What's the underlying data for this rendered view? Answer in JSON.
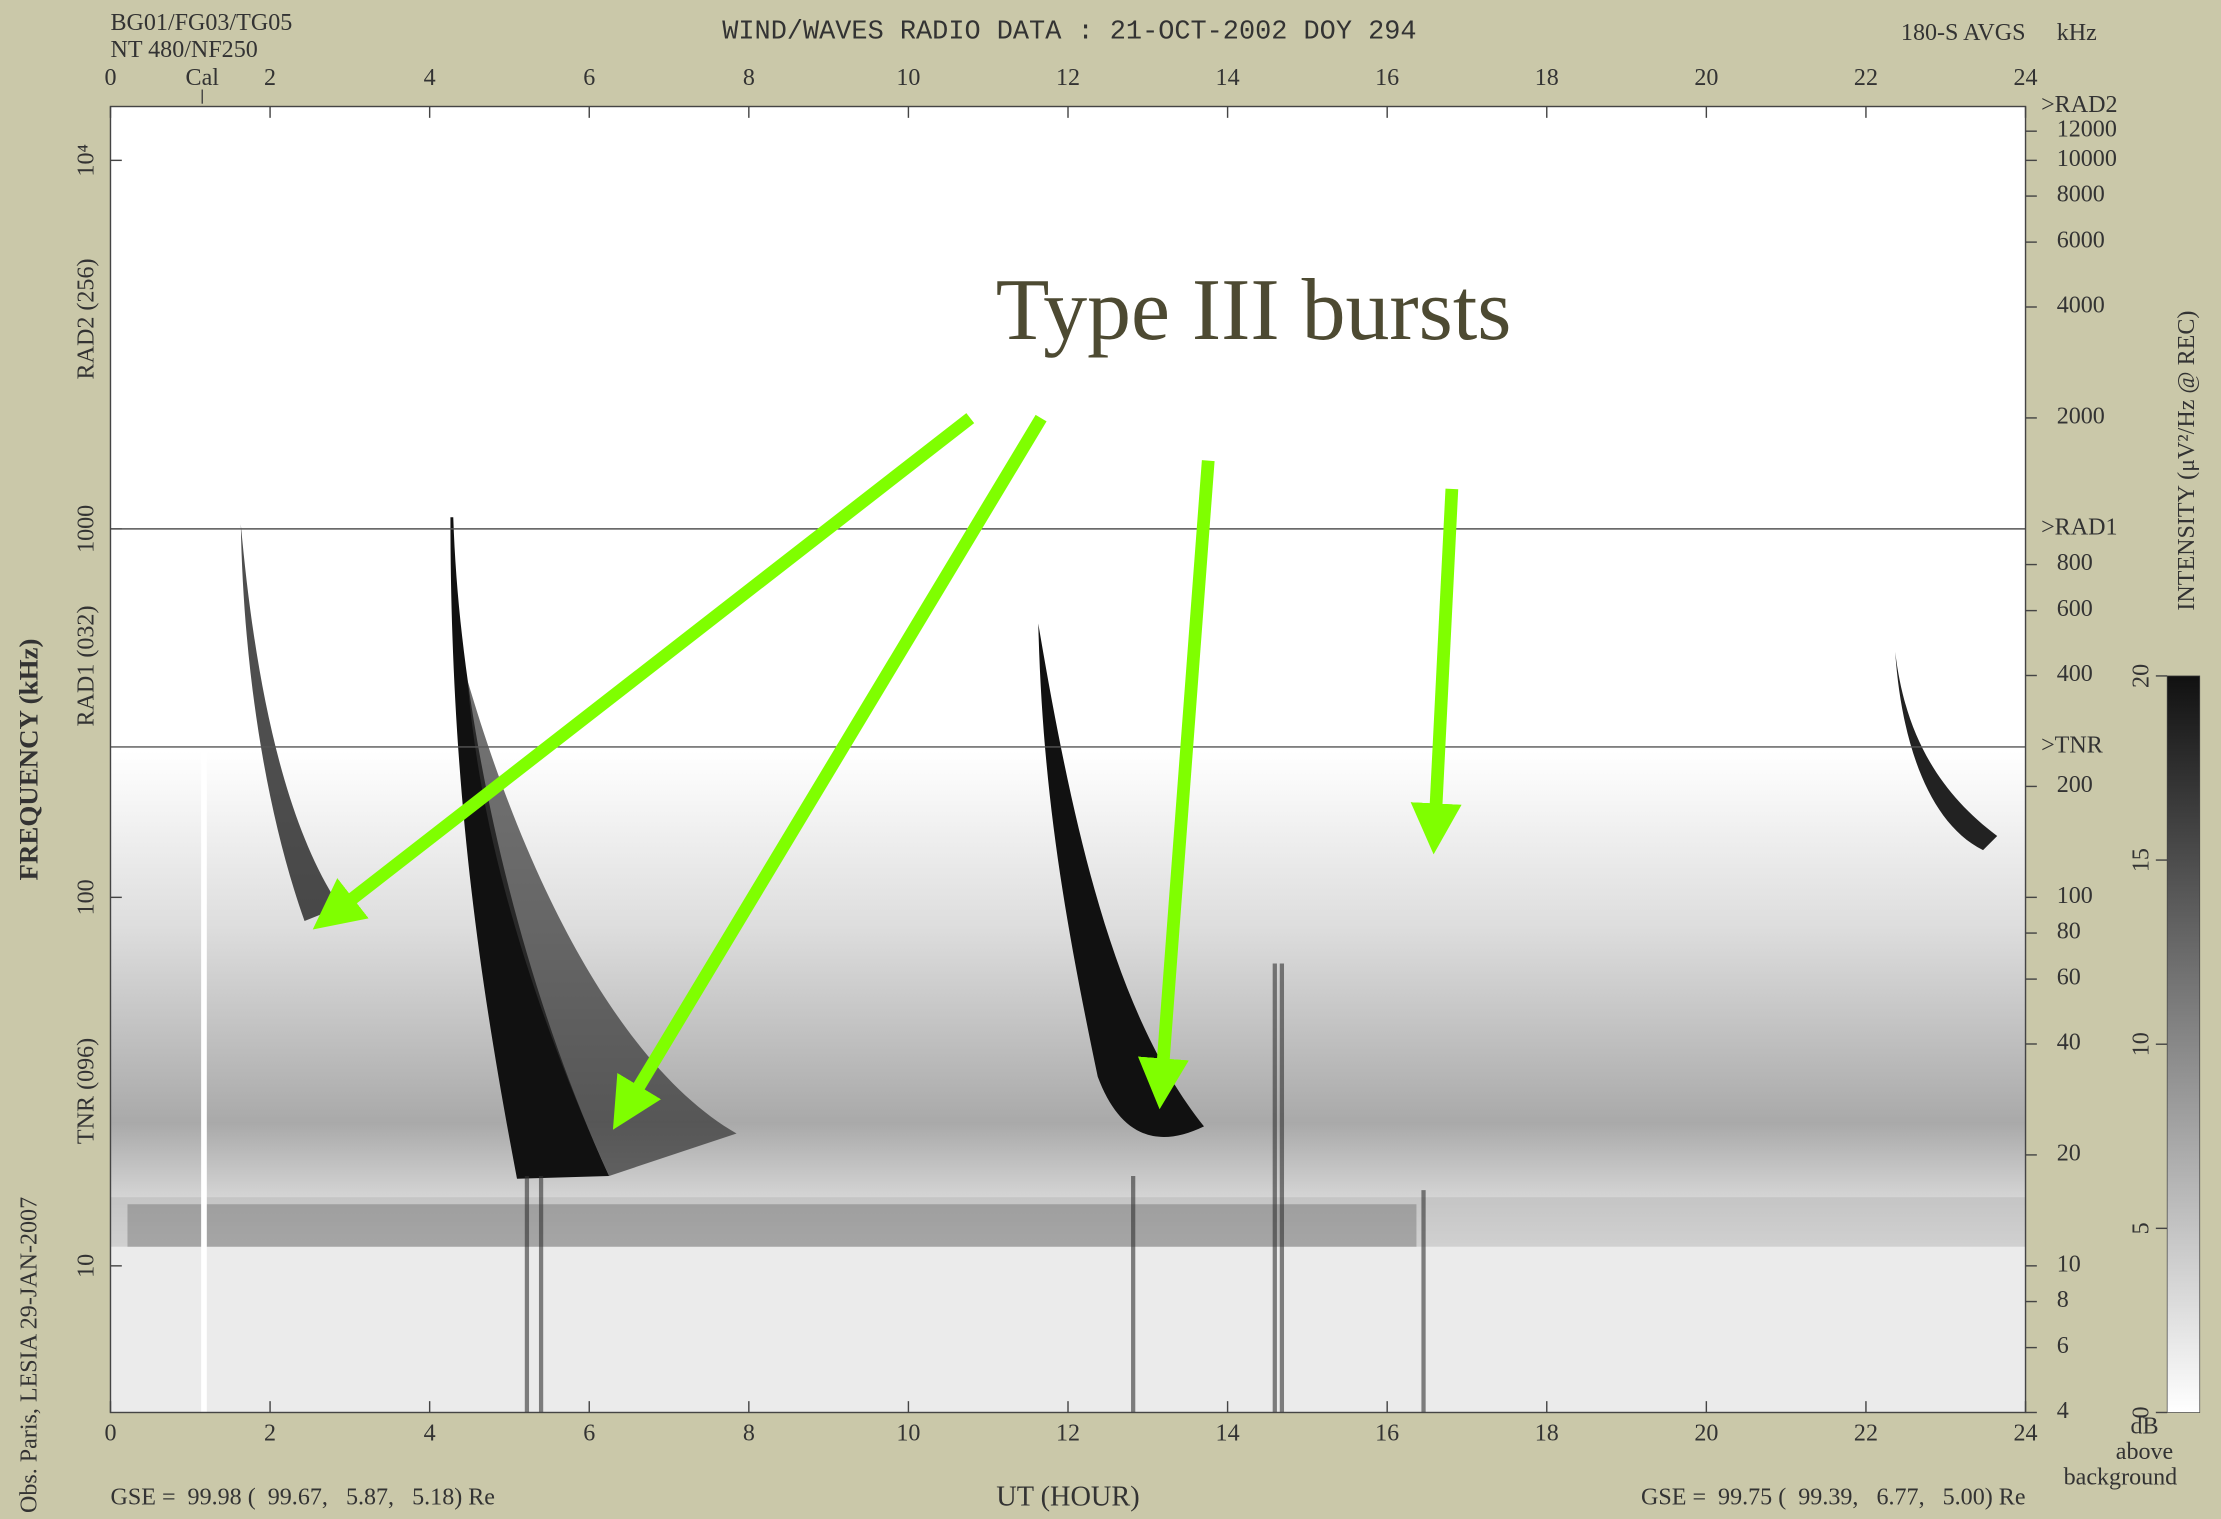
{
  "header": {
    "setup": [
      "BG01/FG03/TG05",
      "NT 480/NF250"
    ],
    "averaging": "180-S AVGS",
    "unit": "kHz",
    "source": "Obs. Paris, LESIA 29-JAN-2007",
    "gse_start": "GSE =  99.98 (  99.67,   5.87,   5.18) Re",
    "gse_end": "GSE =  99.75 (  99.39,   6.77,   5.00) Re",
    "annotation": "Type III bursts"
  },
  "chart_data": {
    "type": "spectrogram",
    "title": "WIND/WAVES RADIO DATA : 21-OCT-2002 DOY 294",
    "xlabel": "UT (HOUR)",
    "ylabel": "FREQUENCY (kHz)",
    "xlim": [
      0,
      24
    ],
    "xticks": [
      0,
      2,
      4,
      6,
      8,
      10,
      12,
      14,
      16,
      18,
      20,
      22,
      24
    ],
    "calibration": {
      "label": "Cal",
      "value": 1.15
    },
    "ylim": [
      4,
      14000
    ],
    "log_y": true,
    "yticks": [
      10,
      100,
      1000,
      {
        "value": 10000,
        "label": "10⁴"
      }
    ],
    "bands": [
      "RAD2 (256)",
      "RAD1 (032)",
      "TNR (096)"
    ],
    "y2lim": [
      4,
      14000
    ],
    "y2ticks": [
      12000,
      10000,
      8000,
      6000,
      4000,
      2000,
      800,
      600,
      400,
      200,
      100,
      80,
      60,
      40,
      20,
      10,
      8,
      6,
      4
    ],
    "receivers": [
      {
        "label": ">RAD2",
        "value": 14000
      },
      {
        "label": ">RAD1",
        "value": 1000
      },
      {
        "label": ">TNR",
        "value": 256
      }
    ],
    "colorbar": {
      "label": "INTENSITY (μV²/Hz @ REC)",
      "unit_label": [
        "dB",
        "above",
        "background"
      ],
      "lim": [
        0,
        20
      ],
      "ticks": [
        0,
        5,
        10,
        15,
        20
      ]
    }
  }
}
